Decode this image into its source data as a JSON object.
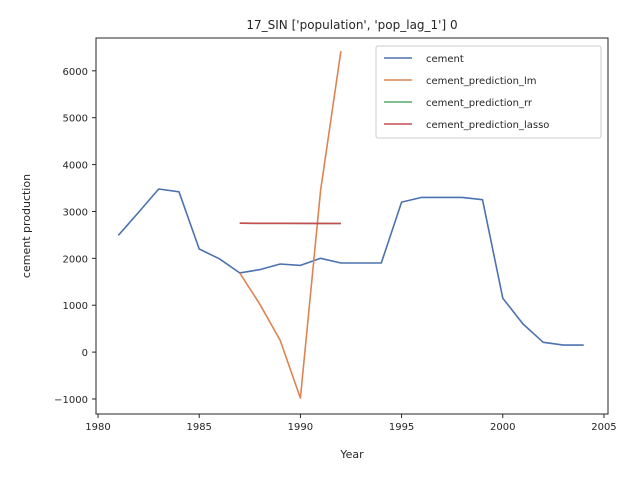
{
  "chart_data": {
    "type": "line",
    "title": "17_SIN ['population', 'pop_lag_1'] 0",
    "xlabel": "Year",
    "ylabel": "cement production",
    "xlim": [
      1979.9,
      2005.2
    ],
    "ylim": [
      -1320,
      6700
    ],
    "xticks": [
      1980,
      1985,
      1990,
      1995,
      2000,
      2005
    ],
    "yticks": [
      -1000,
      0,
      1000,
      2000,
      3000,
      4000,
      5000,
      6000
    ],
    "grid": false,
    "legend_position": "top-right",
    "series": [
      {
        "name": "cement",
        "color": "#4c72b0",
        "x": [
          1981,
          1982,
          1983,
          1984,
          1985,
          1986,
          1987,
          1988,
          1989,
          1990,
          1991,
          1992,
          1993,
          1994,
          1995,
          1996,
          1997,
          1998,
          1999,
          2000,
          2001,
          2002,
          2003,
          2004
        ],
        "y": [
          2490,
          2980,
          3480,
          3420,
          2200,
          1990,
          1690,
          1760,
          1880,
          1850,
          2000,
          1900,
          1900,
          1900,
          3200,
          3300,
          3300,
          3300,
          3250,
          1150,
          600,
          210,
          150,
          150
        ]
      },
      {
        "name": "cement_prediction_lm",
        "color": "#dd8452",
        "x": [
          1987,
          1988,
          1989,
          1990,
          1991,
          1992
        ],
        "y": [
          1690,
          1020,
          250,
          -980,
          3450,
          6420
        ]
      },
      {
        "name": "cement_prediction_rr",
        "color": "#55a868",
        "x": [
          1987,
          1988,
          1989,
          1990,
          1991,
          1992
        ],
        "y": [
          2750,
          2748,
          2748,
          2748,
          2746,
          2745
        ]
      },
      {
        "name": "cement_prediction_lasso",
        "color": "#c44e52",
        "x": [
          1987,
          1988,
          1989,
          1990,
          1991,
          1992
        ],
        "y": [
          2750,
          2747,
          2747,
          2746,
          2745,
          2743
        ]
      }
    ]
  }
}
